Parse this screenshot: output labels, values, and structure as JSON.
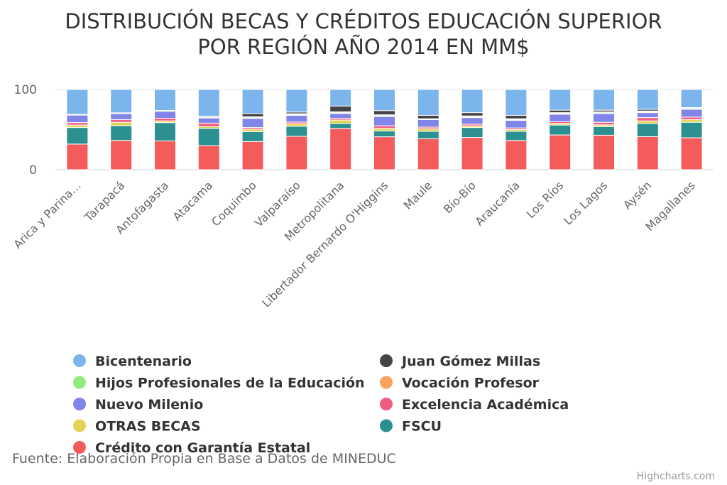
{
  "chart_data": {
    "type": "bar",
    "stacking": "percent",
    "title": "DISTRIBUCIÓN BECAS Y CRÉDITOS EDUCACIÓN SUPERIOR POR REGIÓN AÑO 2014 EN MM$",
    "title_lines": [
      "DISTRIBUCIÓN BECAS Y CRÉDITOS EDUCACIÓN SUPERIOR",
      "POR REGIÓN AÑO 2014 EN MM$"
    ],
    "ylim": [
      0,
      100
    ],
    "yticks": [
      "0",
      "100"
    ],
    "grid": true,
    "legend_position": "bottom",
    "categories": [
      "Arica y Parina…",
      "Tarapacá",
      "Antofagasta",
      "Atacama",
      "Coquimbo",
      "Valparaíso",
      "Metropolitana",
      "Libertador Bernardo O'Higgins",
      "Maule",
      "Bío-Bío",
      "Araucanía",
      "Los Ríos",
      "Los Lagos",
      "Aysén",
      "Magallanes"
    ],
    "series": [
      {
        "name": "Bicentenario",
        "color": "#7cb5ec",
        "values": [
          30,
          27,
          24,
          31,
          29,
          27,
          20,
          25,
          31,
          28,
          31,
          25,
          24,
          24,
          21
        ]
      },
      {
        "name": "Juan Gómez Millas",
        "color": "#434348",
        "values": [
          0,
          0,
          0,
          1,
          4,
          2,
          7,
          5,
          4,
          4,
          4,
          3,
          2,
          2,
          0
        ]
      },
      {
        "name": "Hijos Profesionales de la Educación",
        "color": "#90ed7d",
        "values": [
          1,
          1,
          1,
          1,
          1,
          1,
          1,
          1,
          1,
          1,
          1,
          1,
          1,
          1,
          1
        ]
      },
      {
        "name": "Vocación Profesor",
        "color": "#f7a35c",
        "values": [
          0,
          0,
          0,
          0,
          1,
          1,
          1,
          1,
          0,
          1,
          1,
          1,
          1,
          1,
          1
        ]
      },
      {
        "name": "Nuevo Milenio",
        "color": "#8085e9",
        "values": [
          9,
          7,
          8,
          6,
          11,
          8,
          6,
          11,
          9,
          8,
          9,
          9,
          10,
          6,
          9
        ]
      },
      {
        "name": "Excelencia Académica",
        "color": "#f15c80",
        "values": [
          3,
          3,
          3,
          4,
          2,
          2,
          2,
          3,
          2,
          2,
          2,
          2,
          3,
          4,
          3
        ]
      },
      {
        "name": "OTRAS BECAS",
        "color": "#e4d354",
        "values": [
          3,
          4,
          2,
          2,
          3,
          3,
          4,
          3,
          3,
          2,
          2,
          2,
          2,
          3,
          3
        ]
      },
      {
        "name": "FSCU",
        "color": "#2b908f",
        "values": [
          20,
          17,
          21,
          20,
          12,
          12,
          6,
          7,
          9,
          12,
          11,
          12,
          10,
          16,
          18
        ]
      },
      {
        "name": "Crédito con Garantía Estatal",
        "color": "#f45b5b",
        "values": [
          31,
          34,
          33,
          28,
          34,
          40,
          50,
          39,
          37,
          39,
          35,
          42,
          40,
          40,
          37
        ]
      }
    ],
    "legend_order": [
      "Bicentenario",
      "Juan Gómez Millas",
      "Hijos Profesionales de la Educación",
      "Vocación Profesor",
      "Nuevo Milenio",
      "Excelencia Académica",
      "OTRAS BECAS",
      "FSCU",
      "Crédito con Garantía Estatal"
    ],
    "source": "Fuente: Elaboración Propia en Base a Datos de MINEDUC",
    "credits": "Highcharts.com"
  }
}
